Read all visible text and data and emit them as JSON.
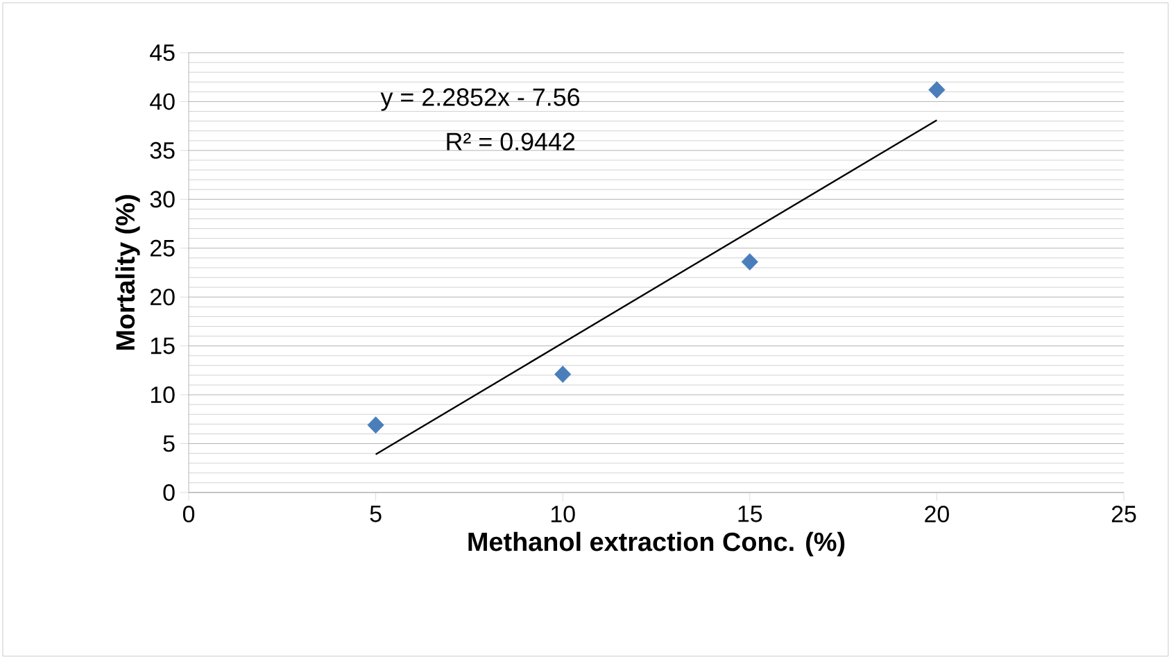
{
  "chart_data": {
    "type": "scatter",
    "xlabel": "Methanol extraction Conc. (%)",
    "ylabel": "Mortality (%)",
    "x": [
      5,
      10,
      15,
      20
    ],
    "series": [
      {
        "color": "#4a7ebb",
        "marker": "diamond",
        "values": [
          6.9,
          12.1,
          23.6,
          41.2
        ]
      },
      {
        "type": "line",
        "color": "#000000",
        "marker": "none",
        "x": [
          5,
          20
        ],
        "values": [
          3.9,
          38.1
        ]
      }
    ],
    "xlim": [
      0,
      25
    ],
    "xticks": [
      0,
      5,
      10,
      15,
      20,
      25
    ],
    "ylim": [
      0,
      45
    ],
    "yticks": [
      0,
      5,
      10,
      15,
      20,
      25,
      30,
      35,
      40,
      45
    ],
    "grid": "y",
    "annotations": [
      "y = 2.2852x - 7.56",
      "R² = 0.9442"
    ]
  }
}
